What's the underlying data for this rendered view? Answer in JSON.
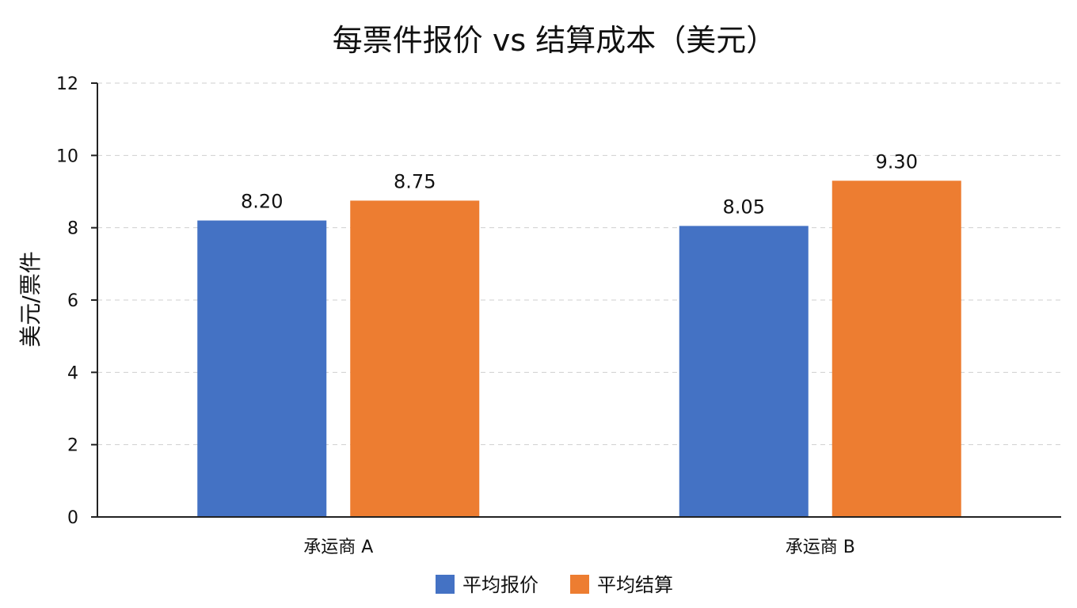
{
  "chart_data": {
    "type": "bar",
    "title": "每票件报价 vs 结算成本（美元）",
    "xlabel": "",
    "ylabel": "美元/票件",
    "categories": [
      "承运商 A",
      "承运商 B"
    ],
    "series": [
      {
        "name": "平均报价",
        "values": [
          8.2,
          8.05
        ],
        "labels": [
          "8.20",
          "8.05"
        ],
        "color": "#4472C4"
      },
      {
        "name": "平均结算",
        "values": [
          8.75,
          9.3
        ],
        "labels": [
          "8.75",
          "9.30"
        ],
        "color": "#ED7D31"
      }
    ],
    "ylim": [
      0,
      12
    ],
    "yticks": [
      0,
      2,
      4,
      6,
      8,
      10,
      12
    ],
    "grid": true,
    "legend_position": "bottom-center"
  }
}
